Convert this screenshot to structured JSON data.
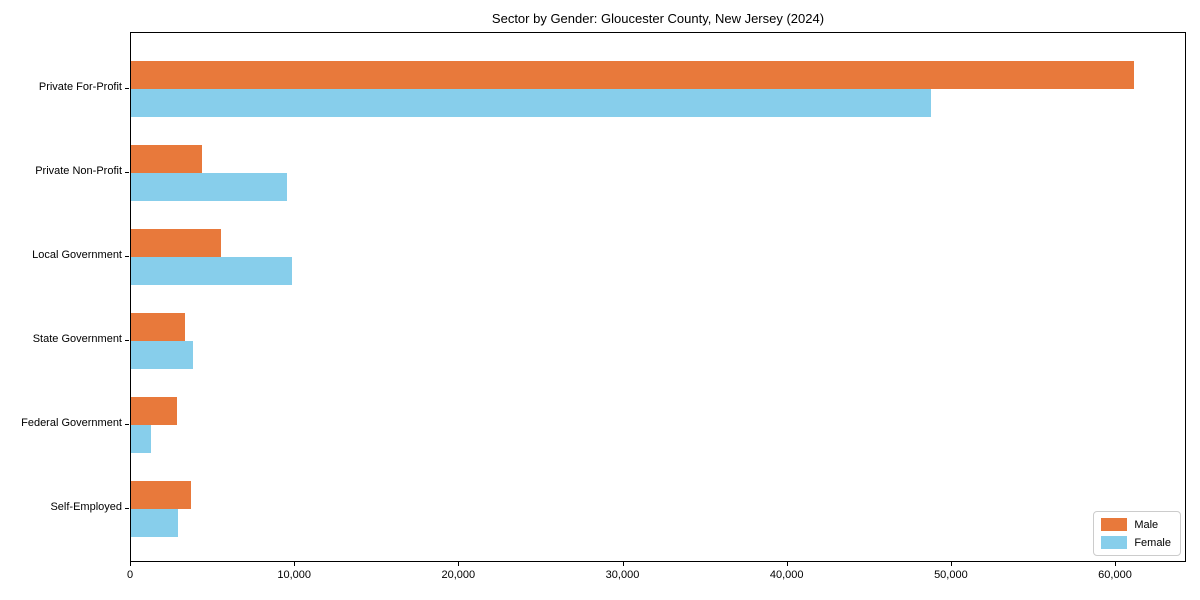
{
  "chart_data": {
    "type": "bar",
    "orientation": "horizontal",
    "title": "Sector by Gender: Gloucester County, New Jersey (2024)",
    "categories": [
      "Private For-Profit",
      "Private Non-Profit",
      "Local Government",
      "State Government",
      "Federal Government",
      "Self-Employed"
    ],
    "series": [
      {
        "name": "Male",
        "color": "#e8793b",
        "values": [
          61100,
          4300,
          5500,
          3300,
          2800,
          3650
        ]
      },
      {
        "name": "Female",
        "color": "#87ceeb",
        "values": [
          48700,
          9500,
          9800,
          3800,
          1200,
          2850
        ]
      }
    ],
    "xlabel": "",
    "ylabel": "",
    "xlim": [
      0,
      64200
    ],
    "xticks": [
      0,
      10000,
      20000,
      30000,
      40000,
      50000,
      60000
    ],
    "xtick_labels": [
      "0",
      "10,000",
      "20,000",
      "30,000",
      "40,000",
      "50,000",
      "60,000"
    ],
    "grid": false,
    "legend": {
      "position": "lower right",
      "entries": [
        "Male",
        "Female"
      ]
    }
  }
}
